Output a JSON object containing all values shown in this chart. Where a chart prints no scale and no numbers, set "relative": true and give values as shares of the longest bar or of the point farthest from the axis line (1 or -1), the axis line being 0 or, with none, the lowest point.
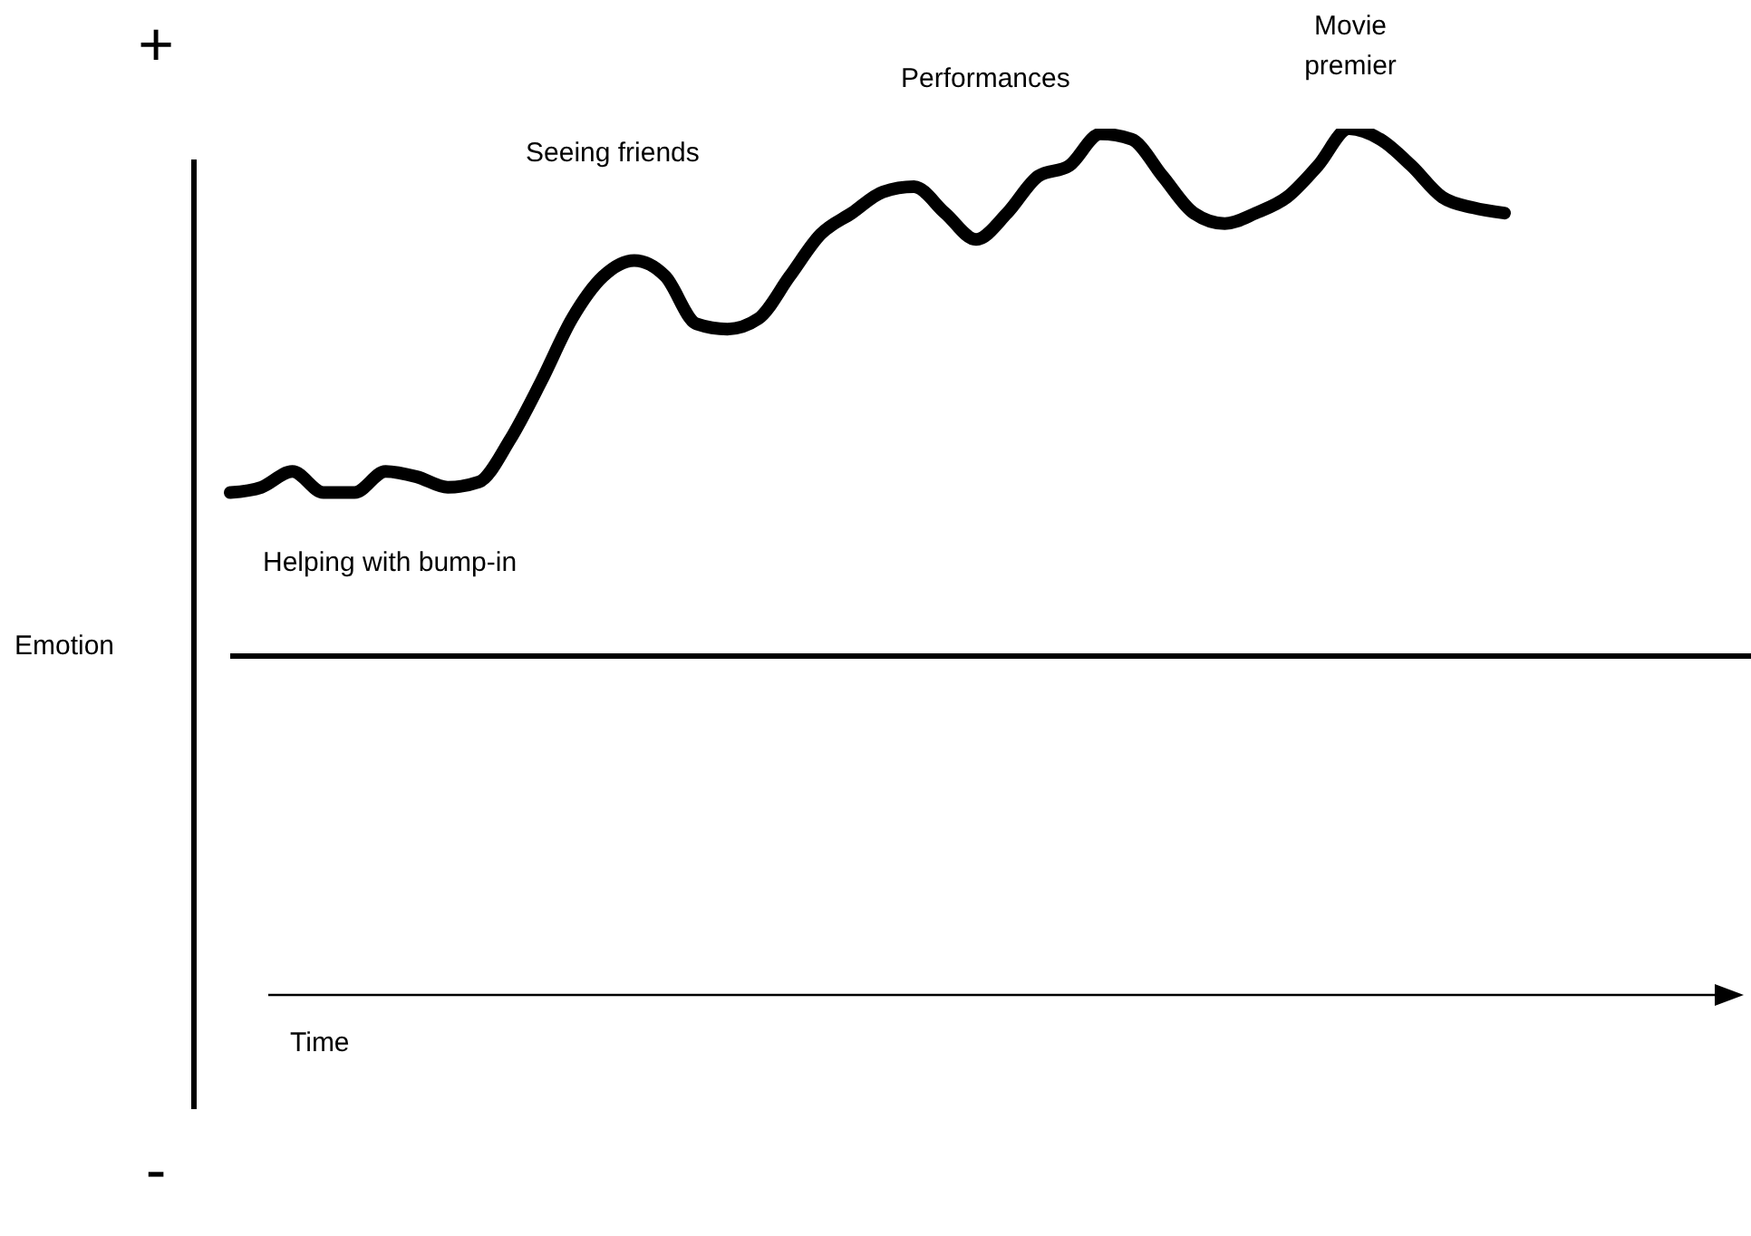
{
  "chart_data": {
    "type": "line",
    "relative": true,
    "ylabel": "Emotion",
    "tick_labels": false,
    "marker": "none",
    "line_style": "solid",
    "categories": [
      null,
      null,
      null,
      null,
      null,
      null,
      null,
      null,
      null,
      null,
      null,
      null,
      null,
      null,
      null,
      null,
      null,
      null,
      null,
      null,
      null,
      null,
      null,
      null,
      null,
      null,
      null,
      null,
      null,
      null,
      null,
      null,
      null,
      null,
      null,
      null,
      null,
      null,
      null,
      null,
      null,
      null
    ],
    "series": [
      {
        "color": "#000000",
        "values": [
          0.31,
          0.32,
          0.35,
          0.31,
          0.31,
          0.35,
          0.34,
          0.32,
          0.33,
          0.41,
          0.52,
          0.64,
          0.72,
          0.75,
          0.72,
          0.63,
          0.62,
          0.64,
          0.72,
          0.8,
          0.84,
          0.88,
          0.89,
          0.84,
          0.79,
          0.84,
          0.91,
          0.93,
          0.99,
          0.98,
          0.91,
          0.84,
          0.82,
          0.84,
          0.87,
          0.93,
          1.0,
          0.98,
          0.93,
          0.87,
          0.85,
          0.84
        ]
      }
    ],
    "annotations": [
      "Seeing friends",
      "Performances",
      "Movie premier",
      "Helping with bump-in",
      "+",
      "-",
      "Time"
    ]
  }
}
